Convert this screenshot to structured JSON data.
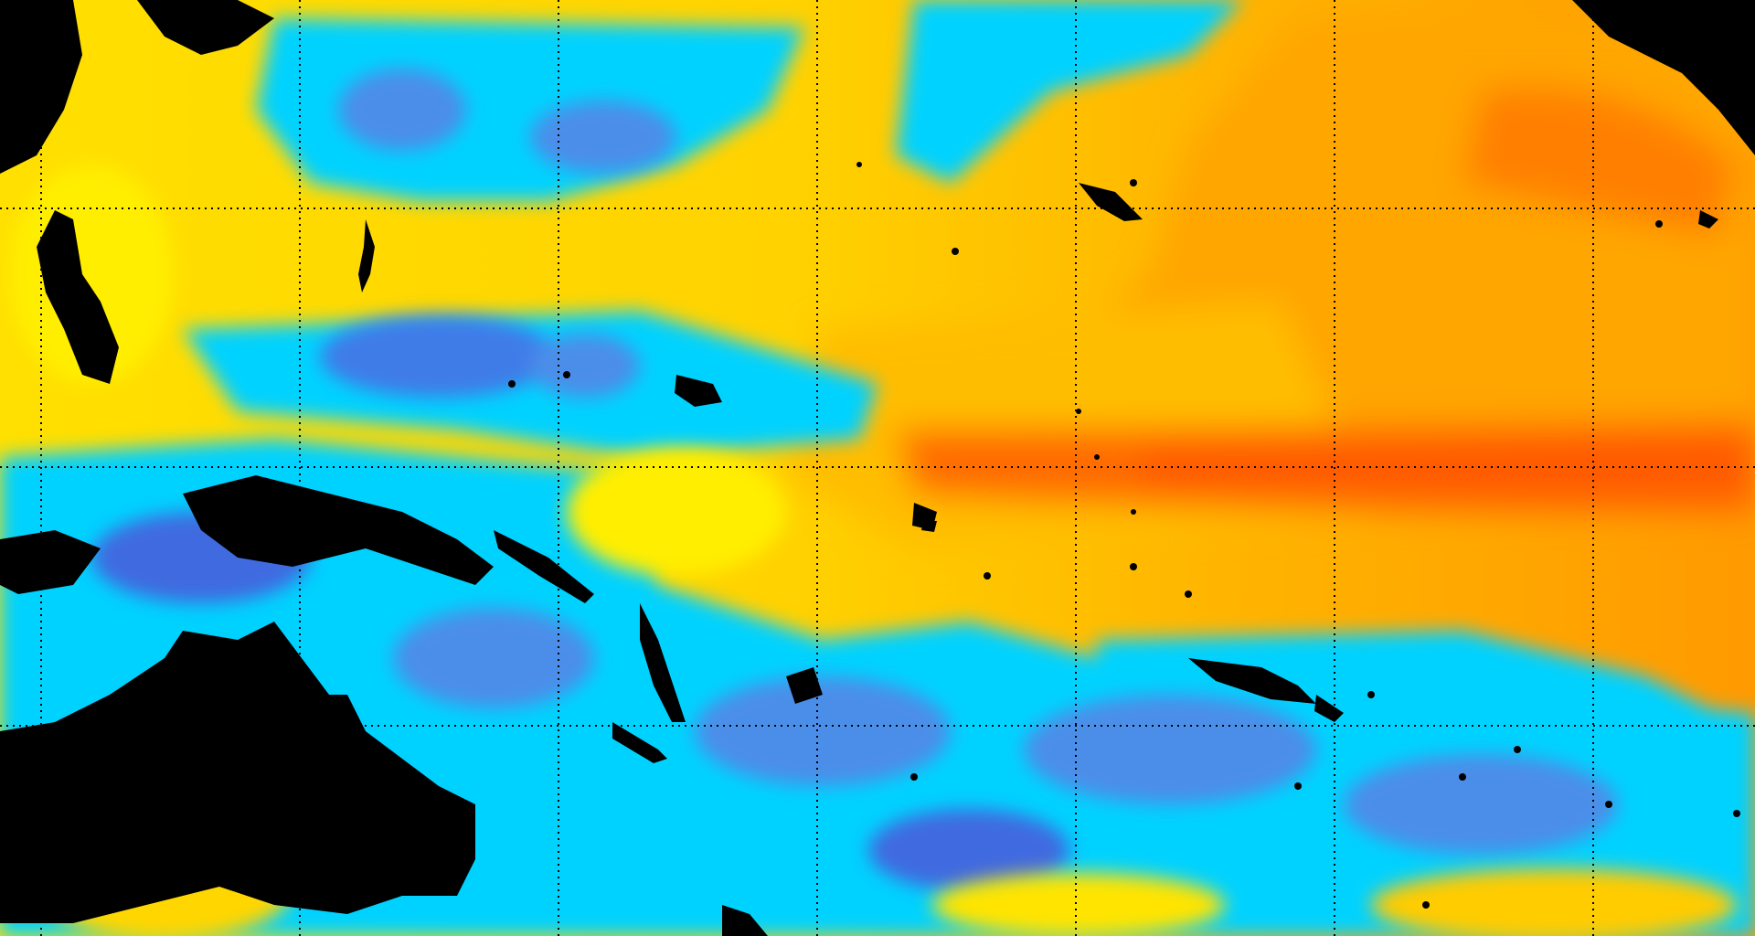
{
  "map": {
    "type": "sea-surface-temperature-anomaly",
    "projection": "equirectangular",
    "colors": {
      "land": "#000000",
      "strong_cold": "#1f3fe6",
      "cold": "#3f86ea",
      "cool": "#00d4ff",
      "neutral": "#ffff00",
      "mild_warm": "#ffd21a",
      "warm": "#ffb000",
      "hot": "#ff6a00",
      "grid": "#000000"
    },
    "grid": {
      "visible": true,
      "style": "dotted",
      "columns": 7,
      "rows": 3
    },
    "features": [
      "australia-landmass",
      "new-guinea-landmass",
      "philippines-landmass",
      "indonesian-archipelago",
      "pacific-islands",
      "north-america-coast",
      "central-america-coast"
    ]
  }
}
